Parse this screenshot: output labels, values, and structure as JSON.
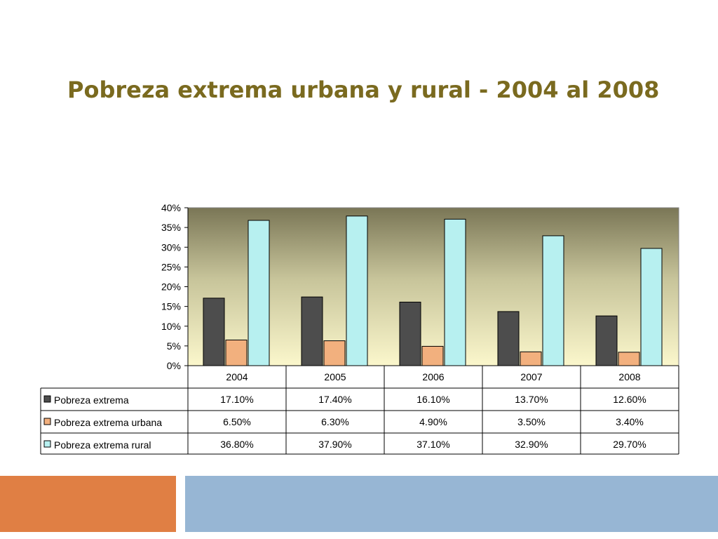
{
  "slide": {
    "title": "Pobreza extrema urbana y rural - 2004 al 2008"
  },
  "chart_data": {
    "type": "bar",
    "title": "",
    "categories": [
      "2004",
      "2005",
      "2006",
      "2007",
      "2008"
    ],
    "series": [
      {
        "name": "Pobreza extrema",
        "values": [
          17.1,
          17.4,
          16.1,
          13.7,
          12.6
        ],
        "labels": [
          "17.10%",
          "17.40%",
          "16.10%",
          "13.70%",
          "12.60%"
        ],
        "color": "#4d4d4d"
      },
      {
        "name": "Pobreza extrema urbana",
        "values": [
          6.5,
          6.3,
          4.9,
          3.5,
          3.4
        ],
        "labels": [
          "6.50%",
          "6.30%",
          "4.90%",
          "3.50%",
          "3.40%"
        ],
        "color": "#f2b07e"
      },
      {
        "name": "Pobreza extrema rural",
        "values": [
          36.8,
          37.9,
          37.1,
          32.9,
          29.7
        ],
        "labels": [
          "36.80%",
          "37.90%",
          "37.10%",
          "32.90%",
          "29.70%"
        ],
        "color": "#b7f0f0"
      }
    ],
    "yticks": [
      "0%",
      "5%",
      "10%",
      "15%",
      "20%",
      "25%",
      "30%",
      "35%",
      "40%"
    ],
    "ylim": [
      0,
      40
    ],
    "xlabel": "",
    "ylabel": "",
    "legend": "data-table",
    "plot_background": "gradient dark olive to pale yellow"
  },
  "footer": {
    "left_color": "#e07f44",
    "right_color": "#97b6d4"
  }
}
